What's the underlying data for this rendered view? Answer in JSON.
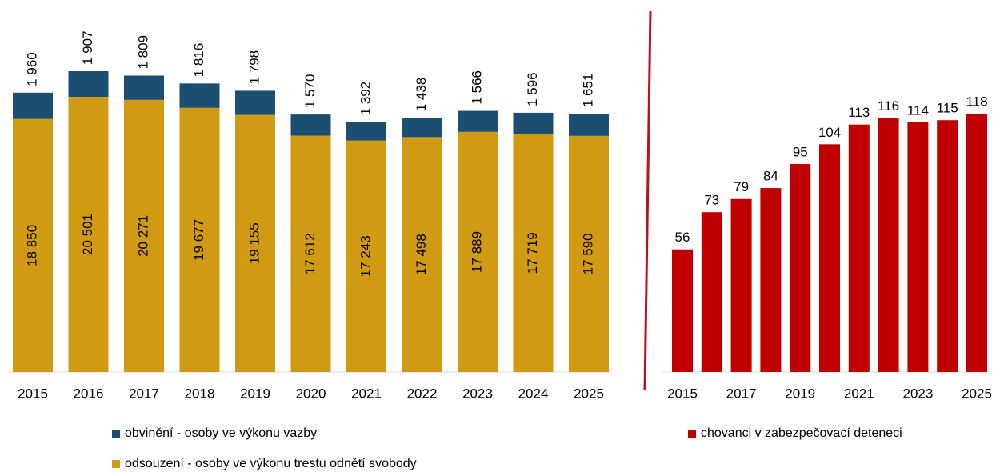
{
  "chart_data": [
    {
      "type": "stacked_bar",
      "categories": [
        "2015",
        "2016",
        "2017",
        "2018",
        "2019",
        "2020",
        "2021",
        "2022",
        "2023",
        "2024",
        "2025"
      ],
      "series": [
        {
          "name": "odsouzení - osoby ve výkonu trestu odnětí svobody",
          "color": "#d09a12",
          "values": [
            18850,
            20501,
            20271,
            19677,
            19155,
            17612,
            17243,
            17498,
            17889,
            17719,
            17590
          ],
          "value_labels": [
            "18 850",
            "20 501",
            "20 271",
            "19 677",
            "19 155",
            "17 612",
            "17 243",
            "17 498",
            "17 889",
            "17 719",
            "17 590"
          ]
        },
        {
          "name": "obvinění - osoby ve výkonu vazby",
          "color": "#1c4e72",
          "values": [
            1960,
            1907,
            1809,
            1816,
            1798,
            1570,
            1392,
            1438,
            1566,
            1596,
            1651
          ],
          "value_labels": [
            "1 960",
            "1 907",
            "1 809",
            "1 816",
            "1 798",
            "1 570",
            "1 392",
            "1 438",
            "1 566",
            "1 596",
            "1 651"
          ]
        }
      ]
    },
    {
      "type": "bar",
      "categories": [
        "2015",
        null,
        "2017",
        null,
        "2019",
        null,
        "2021",
        null,
        "2023",
        null,
        "2025"
      ],
      "series": [
        {
          "name": "chovanci v zabezpečovací deteneci",
          "color": "#c00000",
          "values": [
            56,
            73,
            79,
            84,
            95,
            104,
            113,
            116,
            114,
            115,
            118
          ]
        }
      ]
    }
  ]
}
